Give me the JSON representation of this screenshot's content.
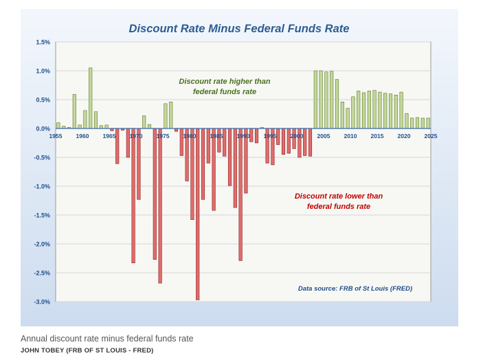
{
  "chart_data": {
    "type": "bar",
    "title": "Discount Rate Minus Federal Funds Rate",
    "xlabel": "",
    "ylabel": "",
    "xlim": [
      1955,
      2025
    ],
    "ylim": [
      -3.0,
      1.5
    ],
    "x_ticks": [
      "1955",
      "1960",
      "1965",
      "1970",
      "1975",
      "1980",
      "1985",
      "1990",
      "1995",
      "2000",
      "2005",
      "2010",
      "2015",
      "2020",
      "2025"
    ],
    "y_ticks": [
      "1.5%",
      "1.0%",
      "0.5%",
      "0.0%",
      "-0.5%",
      "-1.0%",
      "-1.5%",
      "-2.0%",
      "-2.5%",
      "-3.0%"
    ],
    "y_tick_values": [
      1.5,
      1.0,
      0.5,
      0.0,
      -0.5,
      -1.0,
      -1.5,
      -2.0,
      -2.5,
      -3.0
    ],
    "grid": true,
    "positive_color": "#c4d79b",
    "negative_color": "#e06c6c",
    "x": [
      1955,
      1956,
      1957,
      1958,
      1959,
      1960,
      1961,
      1962,
      1963,
      1964,
      1965,
      1966,
      1967,
      1968,
      1969,
      1970,
      1971,
      1972,
      1973,
      1974,
      1975,
      1976,
      1977,
      1978,
      1979,
      1980,
      1981,
      1982,
      1983,
      1984,
      1985,
      1986,
      1987,
      1988,
      1989,
      1990,
      1991,
      1992,
      1993,
      1994,
      1995,
      1996,
      1997,
      1998,
      1999,
      2000,
      2001,
      2002,
      2003,
      2004,
      2005,
      2006,
      2007,
      2008,
      2009,
      2010,
      2011,
      2012,
      2013,
      2014,
      2015,
      2016,
      2017,
      2018,
      2019,
      2020,
      2021,
      2022,
      2023,
      2024
    ],
    "values": [
      0.1,
      0.04,
      0.02,
      0.59,
      0.06,
      0.31,
      1.05,
      0.29,
      0.05,
      0.06,
      -0.04,
      -0.61,
      -0.03,
      -0.5,
      -2.33,
      -1.23,
      0.22,
      0.07,
      -2.27,
      -2.68,
      0.43,
      0.46,
      -0.05,
      -0.47,
      -0.91,
      -1.58,
      -2.97,
      -1.23,
      -0.6,
      -1.42,
      -0.41,
      -0.48,
      -0.99,
      -1.37,
      -2.29,
      -1.12,
      -0.23,
      -0.25,
      0.02,
      -0.6,
      -0.63,
      -0.28,
      -0.45,
      -0.43,
      -0.35,
      -0.5,
      -0.47,
      -0.48,
      1.0,
      1.0,
      0.98,
      0.99,
      0.85,
      0.46,
      0.35,
      0.55,
      0.65,
      0.62,
      0.65,
      0.66,
      0.63,
      0.61,
      0.6,
      0.58,
      0.63,
      0.26,
      0.18,
      0.19,
      0.18,
      0.18
    ],
    "annotations": {
      "higher": "Discount rate higher than\nfederal funds rate",
      "lower": "Discount rate lower than\nfederal funds rate",
      "source": "Data source: FRB of St Louis (FRED)"
    }
  },
  "caption": "Annual discount rate minus federal funds rate",
  "credit": "JOHN TOBEY (FRB OF ST LOUIS - FRED)"
}
